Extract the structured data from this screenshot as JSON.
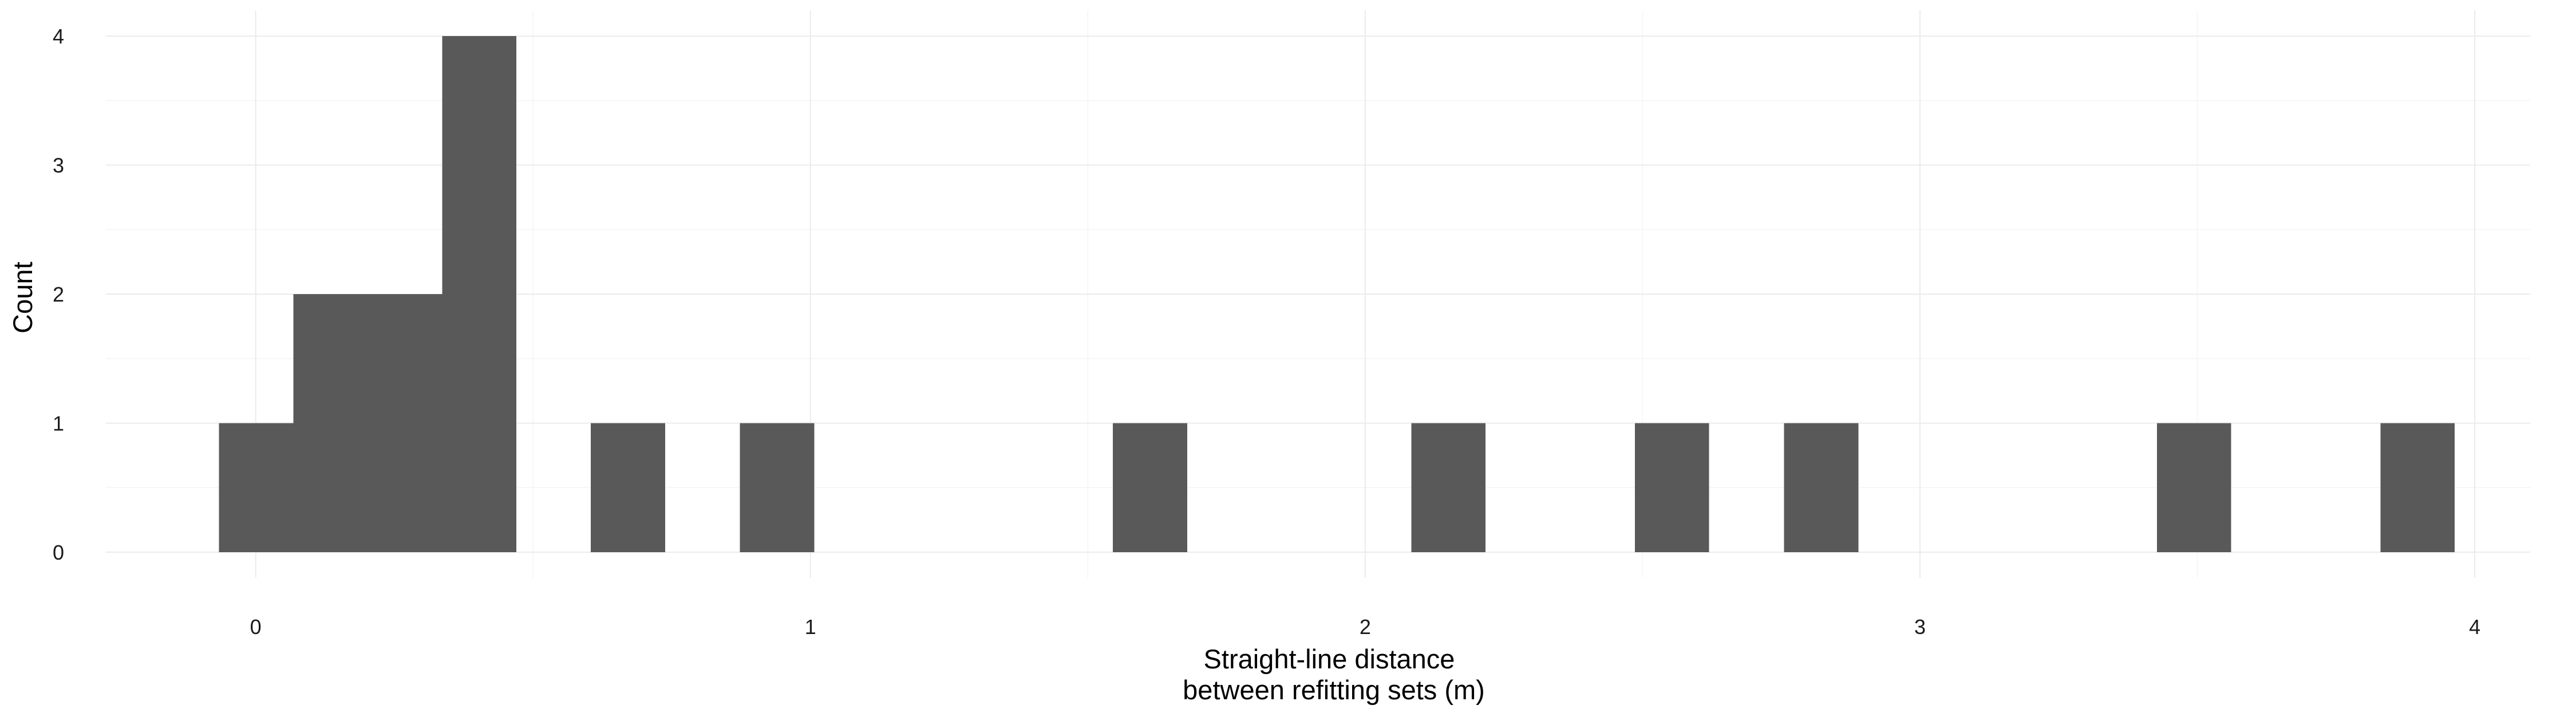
{
  "chart_data": {
    "type": "bar",
    "subtype": "histogram",
    "title": "",
    "xlabel": [
      "Straight-line distance",
      "between refitting sets (m)"
    ],
    "ylabel": "Count",
    "xlim": [
      -0.27,
      4.1
    ],
    "ylim": [
      -0.2,
      4.2
    ],
    "x_ticks": [
      0,
      1,
      2,
      3,
      4
    ],
    "y_ticks": [
      0,
      1,
      2,
      3,
      4
    ],
    "bin_width": 0.134,
    "bins": [
      {
        "x0": -0.066,
        "x1": 0.068,
        "count": 1
      },
      {
        "x0": 0.068,
        "x1": 0.202,
        "count": 2
      },
      {
        "x0": 0.202,
        "x1": 0.336,
        "count": 2
      },
      {
        "x0": 0.336,
        "x1": 0.47,
        "count": 4
      },
      {
        "x0": 0.604,
        "x1": 0.738,
        "count": 1
      },
      {
        "x0": 0.873,
        "x1": 1.007,
        "count": 1
      },
      {
        "x0": 1.545,
        "x1": 1.679,
        "count": 1
      },
      {
        "x0": 2.083,
        "x1": 2.217,
        "count": 1
      },
      {
        "x0": 2.486,
        "x1": 2.62,
        "count": 1
      },
      {
        "x0": 2.755,
        "x1": 2.889,
        "count": 1
      },
      {
        "x0": 3.427,
        "x1": 3.561,
        "count": 1
      },
      {
        "x0": 3.83,
        "x1": 3.964,
        "count": 1
      }
    ],
    "bar_color": "#595959",
    "grid": true,
    "legend": "none"
  }
}
